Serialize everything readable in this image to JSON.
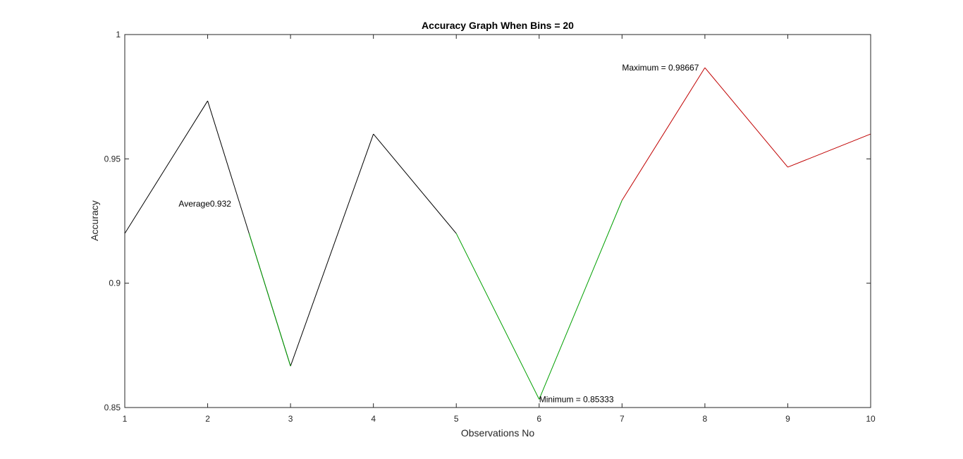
{
  "chart_data": {
    "type": "line",
    "title": "Accuracy Graph When Bins = 20",
    "xlabel": "Observations No",
    "ylabel": "Accuracy",
    "x": [
      1,
      2,
      3,
      4,
      5,
      6,
      7,
      8,
      9,
      10
    ],
    "values": [
      0.92,
      0.97333,
      0.86667,
      0.96,
      0.92,
      0.85333,
      0.93333,
      0.98667,
      0.94667,
      0.96
    ],
    "xlim": [
      1,
      10
    ],
    "ylim": [
      0.85,
      1
    ],
    "xticks": [
      1,
      2,
      3,
      4,
      5,
      6,
      7,
      8,
      9,
      10
    ],
    "yticks": [
      0.85,
      0.9,
      0.95,
      1
    ],
    "ytick_labels": [
      "0.85",
      "0.9",
      "0.95",
      "1"
    ],
    "grid": false,
    "segment_colors": {
      "default": "#000000",
      "decreasing_to_minimum": "#00a000",
      "increasing_to_maximum": "#c00000"
    },
    "annotations": [
      {
        "name": "average",
        "text": "Average0.932",
        "x": 1.65,
        "y": 0.932
      },
      {
        "name": "maximum",
        "text": "Maximum = 0.98667",
        "x": 7.0,
        "y": 0.98667
      },
      {
        "name": "minimum",
        "text": "Minimum = 0.85333",
        "x": 6.0,
        "y": 0.85333
      }
    ]
  }
}
